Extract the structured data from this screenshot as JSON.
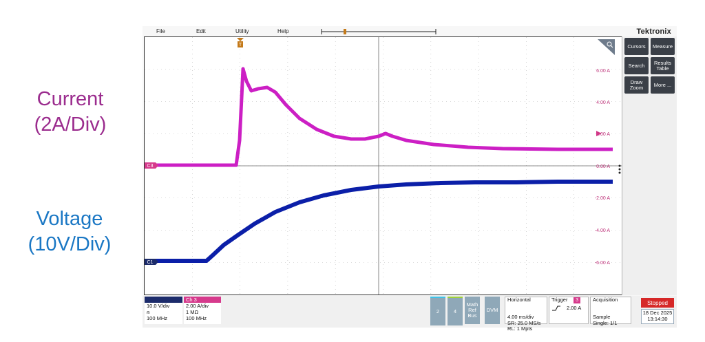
{
  "labels": {
    "current_line1": "Current",
    "current_line2": "(2A/Div)",
    "voltage_line1": "Voltage",
    "voltage_line2": "(10V/Div)"
  },
  "menu": [
    "File",
    "Edit",
    "Utility",
    "Help"
  ],
  "brand": "Tektronix",
  "screen": {
    "right_axis_labels": [
      "6.00 A",
      "4.00 A",
      "2.00 A",
      "0.00 A",
      "-2.00 A",
      "-4.00 A",
      "-6.00 A"
    ],
    "trigger_marker": "T",
    "ch3_marker": "C3",
    "ch1_marker": "C1"
  },
  "right_panel": [
    [
      "Cursors",
      "Measure"
    ],
    [
      "Search",
      "Results\nTable"
    ],
    [
      "Draw\nZoom",
      "More ..."
    ]
  ],
  "bottom": {
    "ch1": {
      "header": "",
      "lines": "10.0 V/div\n⍝\n100 MHz"
    },
    "ch3": {
      "header": "Ch 3",
      "lines": "2.00 A/div\n1 MΩ\n100 MHz"
    },
    "tiles": [
      "2",
      "4",
      "Math\nRef\nBus",
      "DVM"
    ],
    "horizontal": {
      "title": "Horizontal",
      "lines": "4.00 ms/div\nSR: 25.0 MS/s\nRL: 1 Mpts"
    },
    "trigger": {
      "title": "Trigger",
      "channel": "3",
      "level": "2.00 A"
    },
    "acquisition": {
      "title": "Acquisition",
      "lines": "Sample\nSingle: 1/1"
    },
    "status": "Stopped",
    "date": "18 Dec 2025",
    "time": "13:14:30"
  },
  "colors": {
    "current_trace": "#cc1fc4",
    "voltage_trace": "#0b1fa8",
    "ch1_tag": "#1c2b6b",
    "ch3_tag": "#d63a8c",
    "stopped": "#d62828"
  }
}
